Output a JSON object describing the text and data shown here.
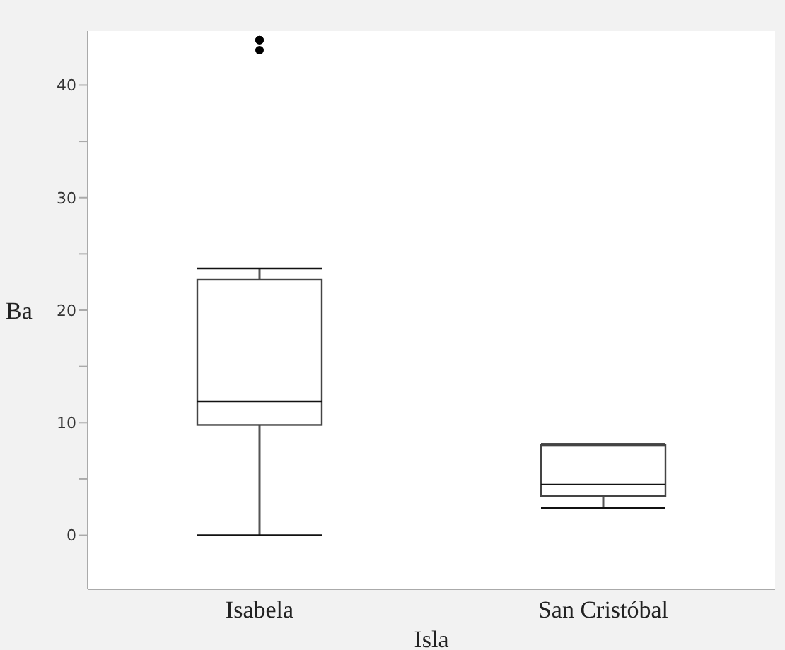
{
  "chart_data": {
    "type": "box",
    "xlabel": "Isla",
    "ylabel": "Ba",
    "categories": [
      "Isabela",
      "San Cristóbal"
    ],
    "boxes": [
      {
        "low": 0,
        "q1": 9.8,
        "median": 11.9,
        "q3": 22.7,
        "high": 23.7,
        "outliers": [
          44.0,
          44.0,
          43.1
        ]
      },
      {
        "low": 2.4,
        "q1": 3.5,
        "median": 4.5,
        "q3": 8.0,
        "high": 8.1
      }
    ],
    "ylim": [
      -4.8,
      44.8
    ],
    "yticks": [
      0,
      {
        "value": 5,
        "label": null
      },
      10,
      {
        "value": 15,
        "label": null
      },
      20,
      {
        "value": 25,
        "label": null
      },
      30,
      {
        "value": 35,
        "label": null
      },
      40
    ],
    "grid": false,
    "legend": false
  }
}
